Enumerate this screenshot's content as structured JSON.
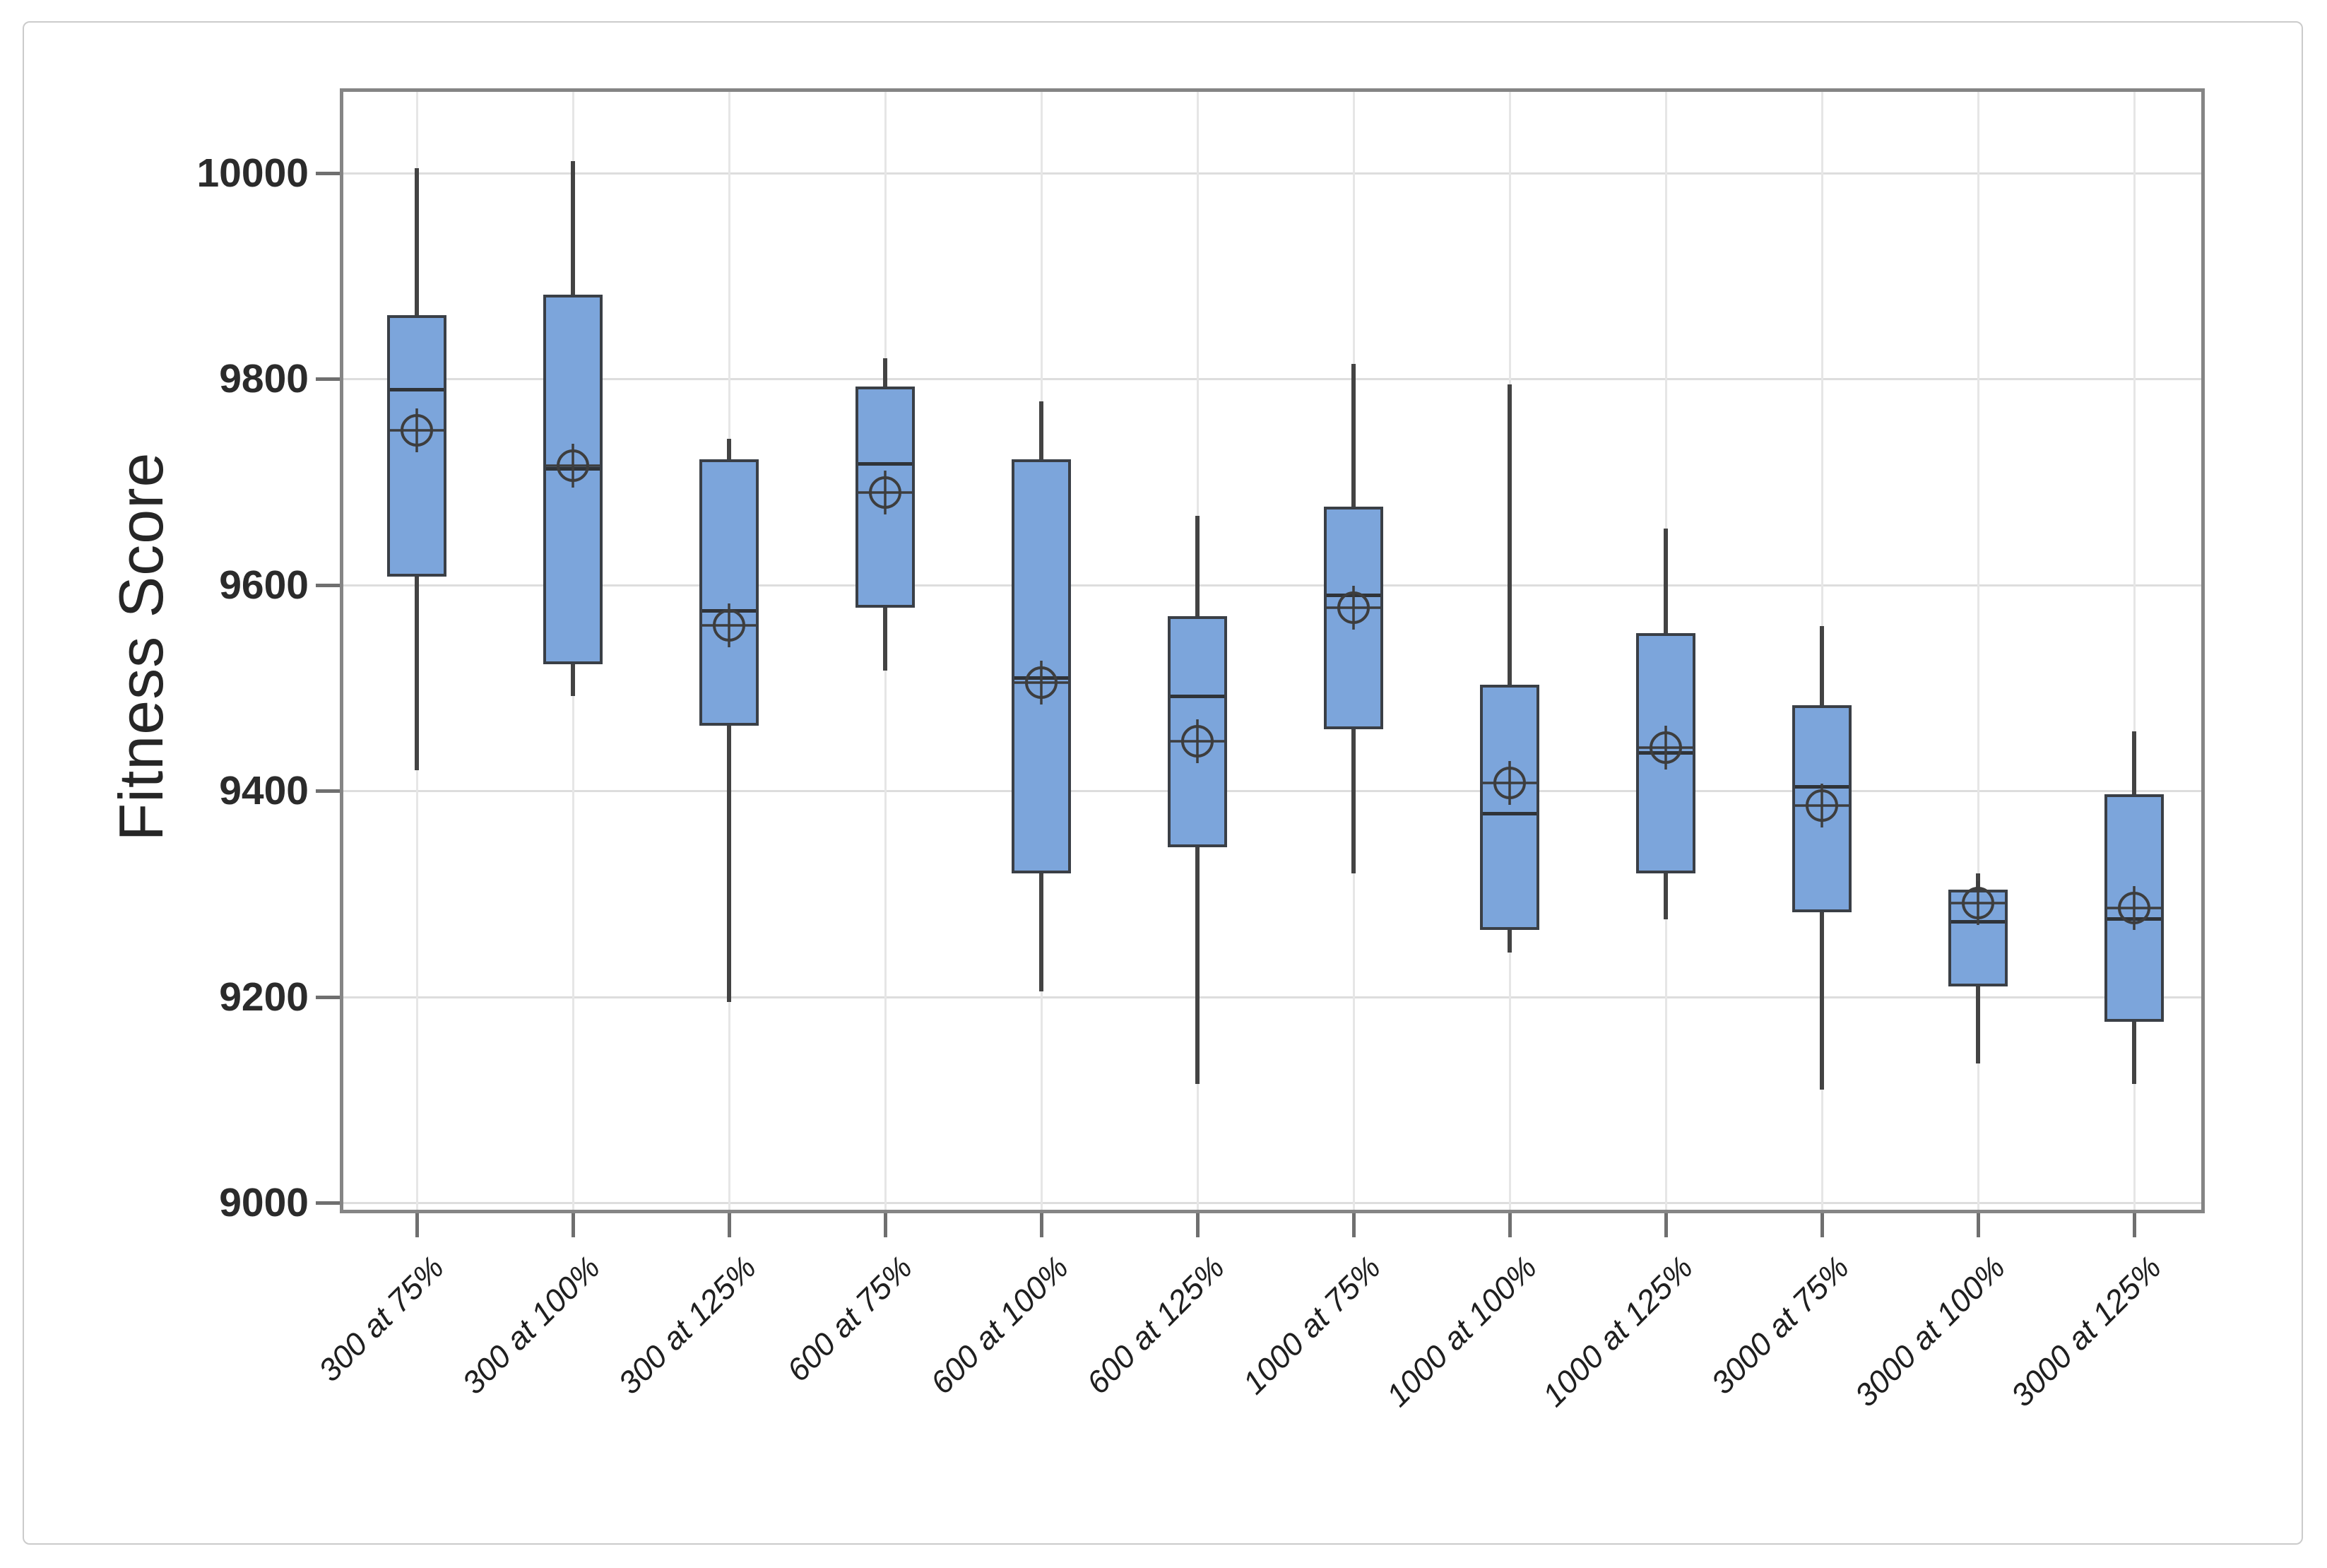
{
  "colors": {
    "box_fill": "#7CA5DB",
    "box_border": "#3A3F46",
    "whisker": "#434343",
    "median": "#2F3338",
    "mean_marker": "#3D3D3D",
    "gridline_h": "#DDDDDD",
    "gridline_v": "#E6E6E6",
    "frame": "#858585",
    "tick": "#6F6F6F",
    "tick_label": "#2B2B2B",
    "figure_border": "#CBCBCB"
  },
  "chart_data": {
    "type": "boxplot",
    "title": "",
    "xlabel": "",
    "ylabel": "Fitness Score",
    "ylim": [
      8990,
      10080
    ],
    "ytick_interval": 200,
    "ytick_labels": [
      "10000",
      "9800",
      "9600",
      "9400",
      "9200",
      "9000"
    ],
    "ytick_values": [
      10000,
      9800,
      9600,
      9400,
      9200,
      9000
    ],
    "grid": "both",
    "legend": "none",
    "categories": [
      "300 at 75%",
      "300 at 100%",
      "300 at 125%",
      "600 at 75%",
      "600 at 100%",
      "600 at 125%",
      "1000 at 75%",
      "1000 at 100%",
      "1000 at 125%",
      "3000 at 75%",
      "3000 at 100%",
      "3000 at 125%"
    ],
    "series": [
      {
        "name": "300 at 75%",
        "whisker_low": 9420,
        "q1": 9608,
        "median": 9790,
        "q3": 9862,
        "whisker_high": 10005,
        "mean": 9750
      },
      {
        "name": "300 at 100%",
        "whisker_low": 9492,
        "q1": 9523,
        "median": 9713,
        "q3": 9882,
        "whisker_high": 10012,
        "mean": 9716
      },
      {
        "name": "300 at 125%",
        "whisker_low": 9195,
        "q1": 9463,
        "median": 9575,
        "q3": 9722,
        "whisker_high": 9742,
        "mean": 9561
      },
      {
        "name": "600 at 75%",
        "whisker_low": 9517,
        "q1": 9578,
        "median": 9718,
        "q3": 9793,
        "whisker_high": 9820,
        "mean": 9690
      },
      {
        "name": "600 at 100%",
        "whisker_low": 9205,
        "q1": 9320,
        "median": 9510,
        "q3": 9722,
        "whisker_high": 9778,
        "mean": 9505
      },
      {
        "name": "600 at 125%",
        "whisker_low": 9115,
        "q1": 9345,
        "median": 9492,
        "q3": 9570,
        "whisker_high": 9667,
        "mean": 9448
      },
      {
        "name": "1000 at 75%",
        "whisker_low": 9320,
        "q1": 9460,
        "median": 9590,
        "q3": 9676,
        "whisker_high": 9815,
        "mean": 9578
      },
      {
        "name": "1000 at 100%",
        "whisker_low": 9243,
        "q1": 9265,
        "median": 9378,
        "q3": 9503,
        "whisker_high": 9795,
        "mean": 9408
      },
      {
        "name": "1000 at 125%",
        "whisker_low": 9275,
        "q1": 9320,
        "median": 9437,
        "q3": 9553,
        "whisker_high": 9655,
        "mean": 9442
      },
      {
        "name": "3000 at 75%",
        "whisker_low": 9110,
        "q1": 9282,
        "median": 9404,
        "q3": 9483,
        "whisker_high": 9560,
        "mean": 9386
      },
      {
        "name": "3000 at 100%",
        "whisker_low": 9135,
        "q1": 9210,
        "median": 9273,
        "q3": 9304,
        "whisker_high": 9320,
        "mean": 9291
      },
      {
        "name": "3000 at 125%",
        "whisker_low": 9115,
        "q1": 9176,
        "median": 9276,
        "q3": 9397,
        "whisker_high": 9458,
        "mean": 9286
      }
    ]
  }
}
